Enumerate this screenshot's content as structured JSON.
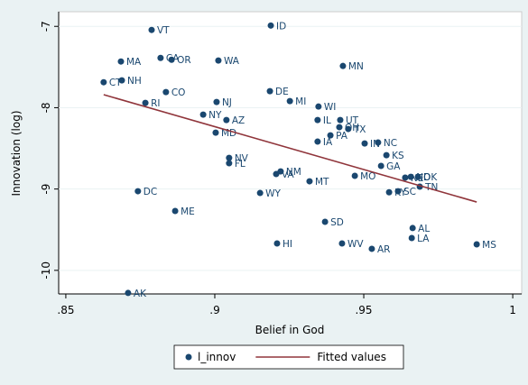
{
  "chart_data": {
    "type": "scatter",
    "xlabel": "Belief in God",
    "ylabel": "Innovation (log)",
    "xlim": [
      0.8476,
      1.003
    ],
    "ylim": [
      -10.29,
      -6.82
    ],
    "xticks": [
      {
        "value": 0.85,
        "label": ".85"
      },
      {
        "value": 0.9,
        "label": ".9"
      },
      {
        "value": 0.95,
        "label": ".95"
      },
      1
    ],
    "yticks": [
      -7,
      -8,
      -9,
      -10
    ],
    "grid": true,
    "legend": "bottom",
    "series": [
      {
        "name": "l_innov",
        "color": "#1a476f",
        "labels": [
          "VT",
          "ID",
          "MA",
          "CA",
          "OR",
          "WA",
          "MN",
          "CT",
          "NH",
          "CO",
          "DE",
          "RI",
          "NJ",
          "MI",
          "WI",
          "NY",
          "AZ",
          "IL",
          "UT",
          "OH",
          "TX",
          "MD",
          "PA",
          "IA",
          "IN",
          "NC",
          "KS",
          "NV",
          "FL",
          "GA",
          "VA",
          "NM",
          "MO",
          "MT",
          "NE",
          "ND",
          "OK",
          "TN",
          "SC",
          "KY",
          "DC",
          "WY",
          "ME",
          "SD",
          "AL",
          "LA",
          "HI",
          "WV",
          "AR",
          "MS",
          "AK"
        ],
        "x": [
          0.8788,
          0.9188,
          0.8685,
          0.8818,
          0.8855,
          0.9012,
          0.943,
          0.8627,
          0.8688,
          0.8836,
          0.9185,
          0.8767,
          0.9006,
          0.9252,
          0.9348,
          0.8961,
          0.9039,
          0.9345,
          0.9421,
          0.9418,
          0.9448,
          0.9003,
          0.9388,
          0.9345,
          0.9503,
          0.9548,
          0.9576,
          0.9048,
          0.9048,
          0.9558,
          0.9206,
          0.9221,
          0.947,
          0.9318,
          0.9639,
          0.9658,
          0.9682,
          0.9688,
          0.9615,
          0.9585,
          0.8742,
          0.9152,
          0.8867,
          0.937,
          0.9664,
          0.9661,
          0.9209,
          0.9427,
          0.9527,
          0.9879,
          0.8709
        ],
        "values": [
          -7.044,
          -6.99,
          -7.432,
          -7.388,
          -7.41,
          -7.42,
          -7.487,
          -7.687,
          -7.664,
          -7.808,
          -7.797,
          -7.941,
          -7.93,
          -7.919,
          -7.986,
          -8.085,
          -8.152,
          -8.152,
          -8.152,
          -8.24,
          -8.262,
          -8.307,
          -8.34,
          -8.417,
          -8.44,
          -8.428,
          -8.584,
          -8.617,
          -8.683,
          -8.716,
          -8.816,
          -8.783,
          -8.838,
          -8.905,
          -8.86,
          -8.85,
          -8.85,
          -8.971,
          -9.027,
          -9.04,
          -9.027,
          -9.049,
          -9.27,
          -9.403,
          -9.48,
          -9.603,
          -9.669,
          -9.669,
          -9.735,
          -9.68,
          -10.278
        ]
      },
      {
        "name": "Fitted values",
        "type": "line",
        "color": "#90353b",
        "x": [
          0.8627,
          0.9879
        ],
        "values": [
          -7.84,
          -9.16
        ]
      }
    ]
  }
}
